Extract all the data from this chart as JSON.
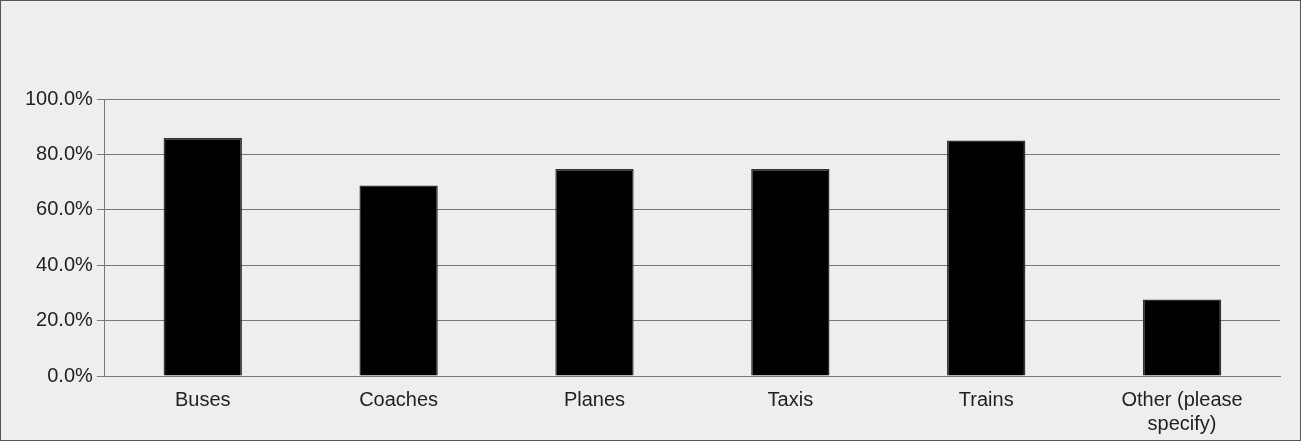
{
  "chart_data": {
    "type": "bar",
    "categories": [
      "Buses",
      "Coaches",
      "Planes",
      "Taxis",
      "Trains",
      "Other (please specify)"
    ],
    "values": [
      85.9,
      68.8,
      74.7,
      74.7,
      85.0,
      27.6
    ],
    "color": "#000000",
    "ylim": [
      0,
      100
    ],
    "yticks": [
      {
        "value": 0,
        "label": "0.0%"
      },
      {
        "value": 20,
        "label": "20.0%"
      },
      {
        "value": 40,
        "label": "40.0%"
      },
      {
        "value": 60,
        "label": "60.0%"
      },
      {
        "value": 80,
        "label": "80.0%"
      },
      {
        "value": 100,
        "label": "100.0%"
      }
    ],
    "grid": "y",
    "legend": false
  }
}
